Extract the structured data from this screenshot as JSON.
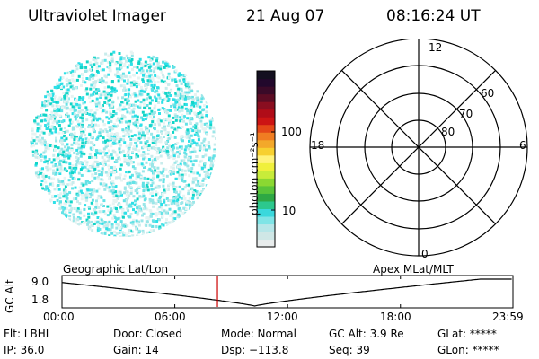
{
  "header": {
    "title": "Ultraviolet Imager",
    "date": "21 Aug 07",
    "time": "08:16:24 UT"
  },
  "image_panel": {
    "palette_colors": [
      "#2de0e8",
      "#30cfd8",
      "#64e2e6",
      "#9be6e8",
      "#c9ecec",
      "#e6f3f2",
      "#12d5c8",
      "#58b8c0"
    ]
  },
  "colorbar": {
    "label": "photon cm⁻²s⁻¹",
    "tick_labels": [
      "100",
      "10"
    ],
    "colors": [
      "#e8ecec",
      "#cfe7e6",
      "#b6e6e8",
      "#7fe4e6",
      "#3ad8dc",
      "#2cc88d",
      "#2ea844",
      "#59c43a",
      "#8bd832",
      "#c8ec3a",
      "#f0f03c",
      "#fff27a",
      "#f7d030",
      "#f3a82a",
      "#f07d22",
      "#e44818",
      "#cc1414",
      "#b00c18",
      "#8a0e20",
      "#5c0c24",
      "#3a0a28",
      "#22082c",
      "#141020"
    ]
  },
  "polar_plot": {
    "mlt_labels": {
      "top": "12",
      "left": "18",
      "right": "6",
      "bottom": "0"
    },
    "lat_labels": [
      "60",
      "70",
      "80"
    ]
  },
  "orbit_plot": {
    "left_title": "Geographic Lat/Lon",
    "right_title": "Apex MLat/MLT",
    "y_label": "GC Alt",
    "y_ticks": [
      "9.0",
      "1.8"
    ],
    "x_ticks": [
      "00:00",
      "06:00",
      "12:00",
      "18:00",
      "23:59"
    ],
    "current_marker_time": "08:16",
    "curve_min_time": "10:15",
    "line_color": "#000000",
    "marker_color": "#cc0000"
  },
  "status": {
    "row1": [
      "Flt: LBHL",
      "Door: Closed",
      "Mode: Normal",
      "GC Alt: 3.9 Re",
      "GLat: *****"
    ],
    "row2": [
      "IP: 36.0",
      "Gain: 14",
      "Dsp: −113.8",
      "Seq: 39",
      "GLon: *****"
    ]
  }
}
